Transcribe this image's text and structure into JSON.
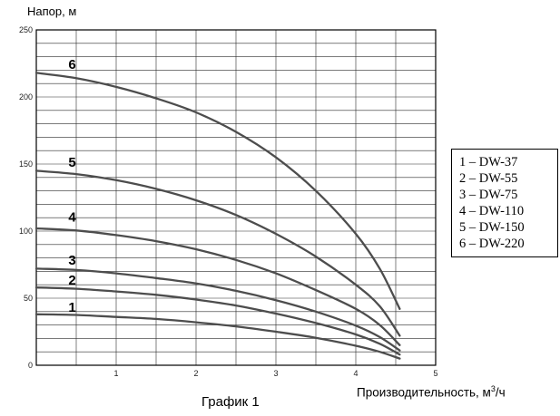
{
  "chart_data": {
    "type": "line",
    "caption": "График 1",
    "y_axis_title": "Напор, м",
    "x_axis_title_prefix": "Производительность, м",
    "x_axis_title_sup": "3",
    "x_axis_title_suffix": "/ч",
    "xlim": [
      0,
      5
    ],
    "ylim": [
      0,
      250
    ],
    "x_tick_labels": [
      1,
      2,
      3,
      4,
      5
    ],
    "y_tick_labels": [
      0,
      50,
      100,
      150,
      200,
      250
    ],
    "x_grid_step": 0.5,
    "y_grid_step": 10,
    "grid": true,
    "curve_color": "#4d4d4d",
    "grid_color": "#2b2b2b",
    "series": [
      {
        "label": "1",
        "model": "DW-37",
        "x": [
          0,
          0.5,
          1,
          1.5,
          2,
          2.5,
          3,
          3.5,
          4,
          4.3,
          4.55
        ],
        "y": [
          38,
          37.5,
          36,
          34.5,
          32,
          29,
          25,
          20.5,
          14.5,
          10,
          5
        ],
        "label_pos": {
          "x": 0.45,
          "y": 40
        }
      },
      {
        "label": "2",
        "model": "DW-55",
        "x": [
          0,
          0.5,
          1,
          1.5,
          2,
          2.5,
          3,
          3.5,
          4,
          4.3,
          4.55
        ],
        "y": [
          58,
          57,
          55,
          52.5,
          49,
          44.5,
          38.5,
          31.5,
          23,
          16,
          8
        ],
        "label_pos": {
          "x": 0.45,
          "y": 60
        }
      },
      {
        "label": "3",
        "model": "DW-75",
        "x": [
          0,
          0.5,
          1,
          1.5,
          2,
          2.5,
          3,
          3.5,
          4,
          4.3,
          4.55
        ],
        "y": [
          72,
          71,
          68.5,
          65,
          61,
          55.5,
          48.5,
          40,
          29.5,
          21,
          11
        ],
        "label_pos": {
          "x": 0.45,
          "y": 75
        }
      },
      {
        "label": "4",
        "model": "DW-110",
        "x": [
          0,
          0.5,
          1,
          1.5,
          2,
          2.5,
          3,
          3.5,
          4,
          4.3,
          4.55
        ],
        "y": [
          102,
          100.5,
          97,
          92.5,
          86.5,
          78.5,
          68.5,
          56,
          42,
          30,
          15
        ],
        "label_pos": {
          "x": 0.45,
          "y": 107
        }
      },
      {
        "label": "5",
        "model": "DW-150",
        "x": [
          0,
          0.5,
          1,
          1.5,
          2,
          2.5,
          3,
          3.5,
          4,
          4.3,
          4.55
        ],
        "y": [
          145,
          142.5,
          138,
          131.5,
          123,
          112,
          98,
          81,
          60,
          44,
          22
        ],
        "label_pos": {
          "x": 0.45,
          "y": 148
        }
      },
      {
        "label": "6",
        "model": "DW-220",
        "x": [
          0,
          0.5,
          1,
          1.5,
          2,
          2.5,
          3,
          3.5,
          4,
          4.3,
          4.55
        ],
        "y": [
          218,
          214,
          207.5,
          199,
          188.5,
          174,
          155,
          130,
          98,
          72,
          42
        ],
        "label_pos": {
          "x": 0.45,
          "y": 221
        }
      }
    ],
    "legend": {
      "items": [
        "1 – DW-37",
        "2 – DW-55",
        "3 – DW-75",
        "4 – DW-110",
        "5 – DW-150",
        "6 – DW-220"
      ]
    }
  }
}
